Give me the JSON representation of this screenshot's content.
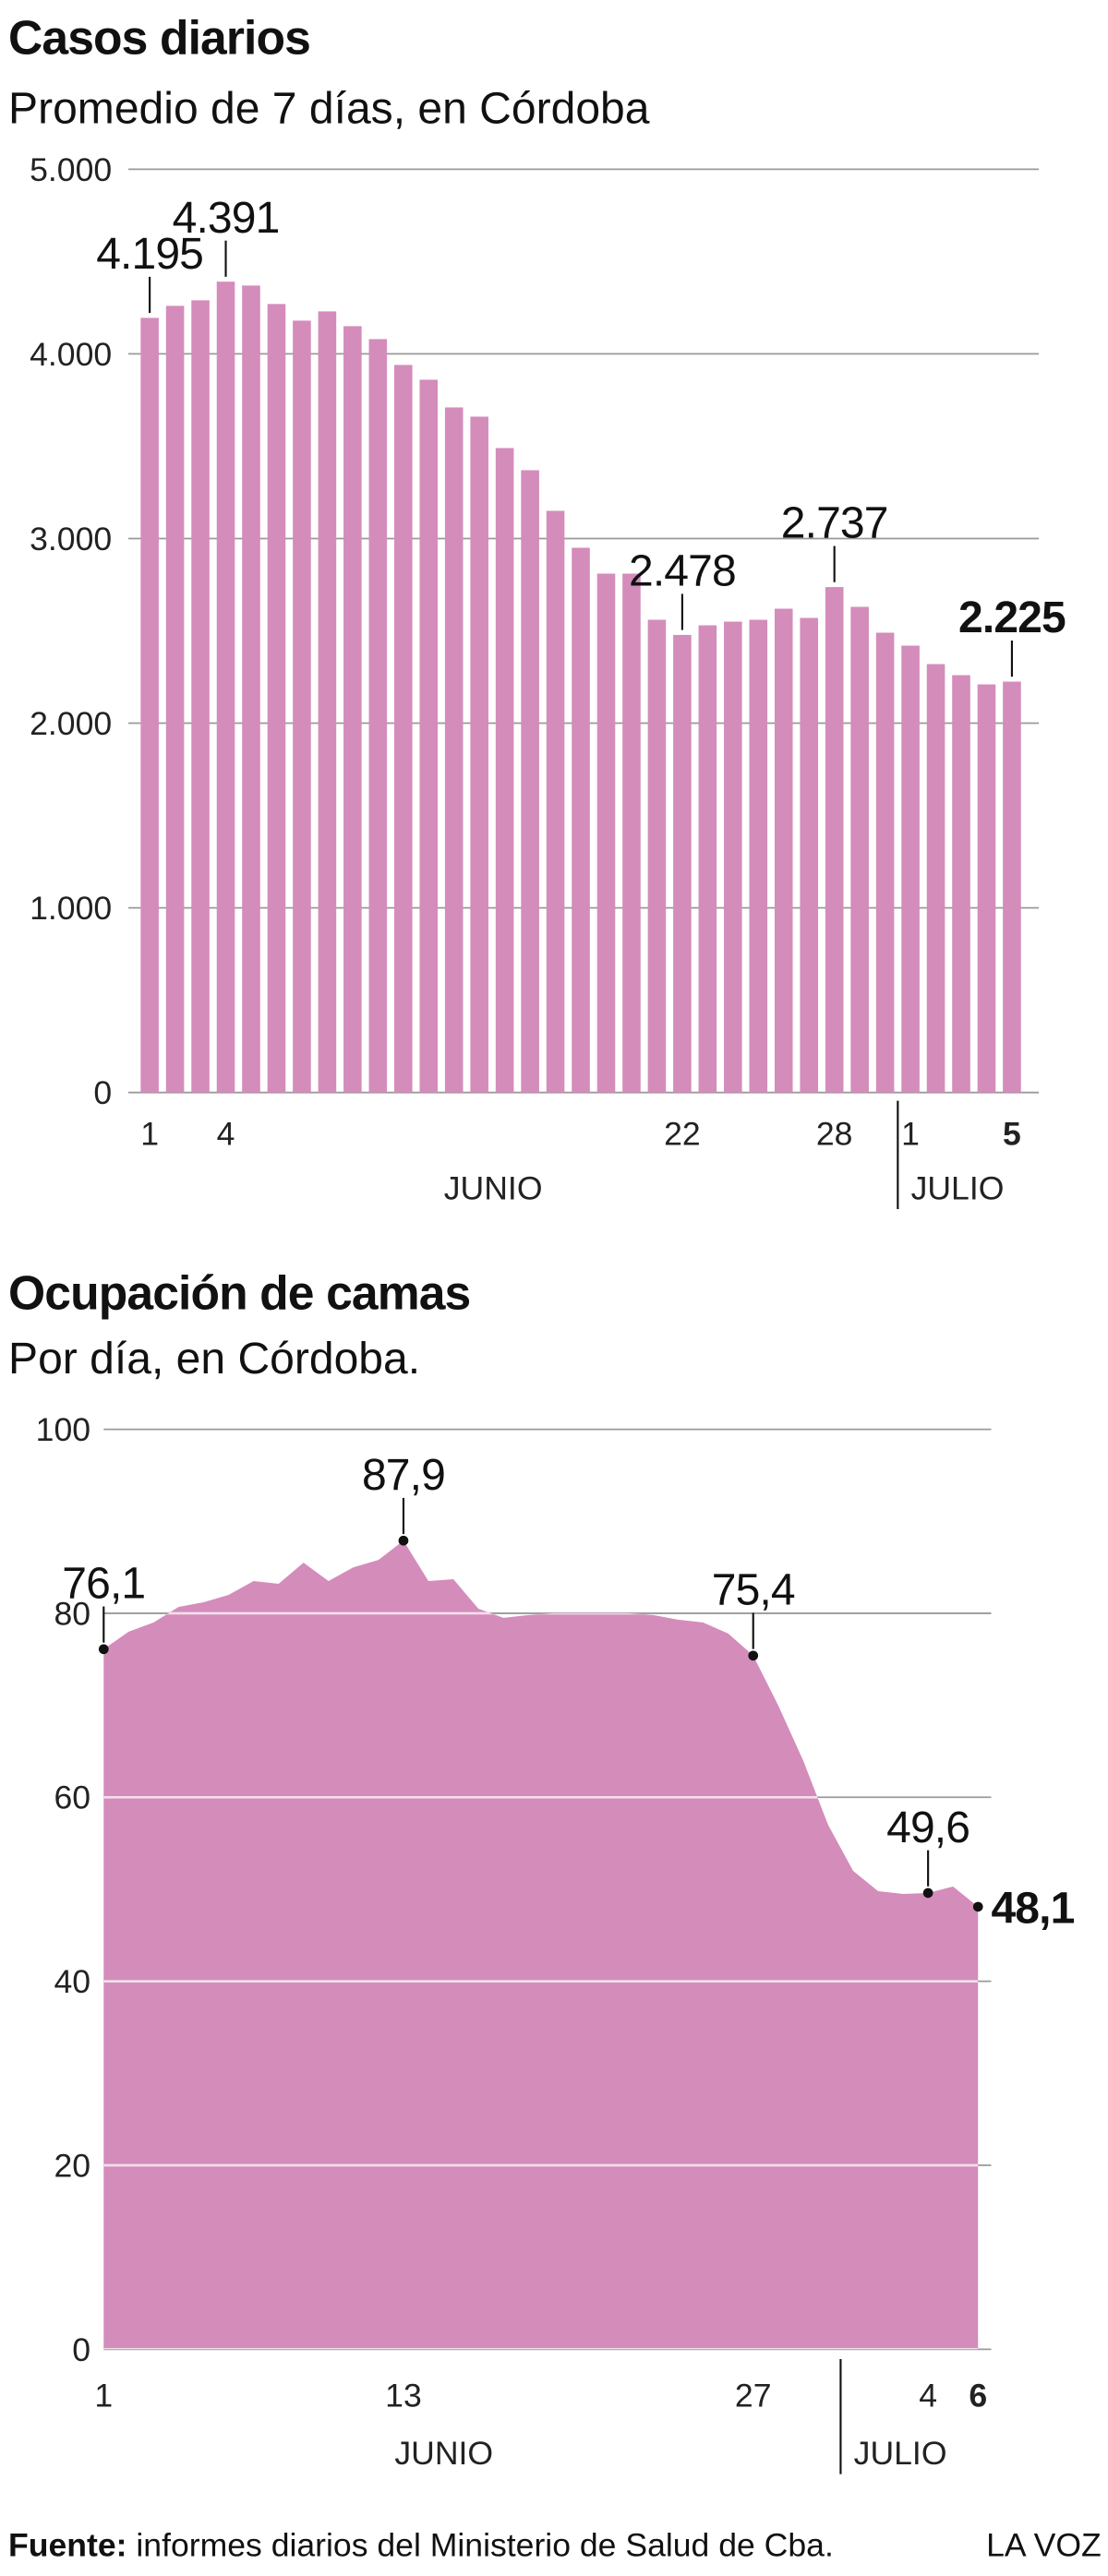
{
  "chart_data": [
    {
      "type": "bar",
      "title": "Casos diarios",
      "subtitle": "Promedio de 7 días, en Córdoba",
      "categories": [
        "1",
        null,
        null,
        "4",
        null,
        null,
        null,
        null,
        null,
        null,
        null,
        null,
        null,
        null,
        null,
        null,
        null,
        null,
        null,
        null,
        null,
        "22",
        null,
        null,
        null,
        null,
        null,
        "28",
        null,
        null,
        "1",
        null,
        null,
        null,
        "5"
      ],
      "groups": [
        "JUNIO",
        "JULIO"
      ],
      "values": [
        4195,
        4260,
        4290,
        4391,
        4370,
        4270,
        4180,
        4230,
        4150,
        4080,
        3940,
        3860,
        3710,
        3660,
        3490,
        3370,
        3150,
        2950,
        2810,
        2810,
        2560,
        2478,
        2530,
        2550,
        2560,
        2620,
        2570,
        2737,
        2630,
        2490,
        2420,
        2320,
        2260,
        2210,
        2225
      ],
      "value_labels": [
        "4.195",
        null,
        null,
        "4.391",
        null,
        null,
        null,
        null,
        null,
        null,
        null,
        null,
        null,
        null,
        null,
        null,
        null,
        null,
        null,
        null,
        null,
        "2.478",
        null,
        null,
        null,
        null,
        null,
        "2.737",
        null,
        null,
        null,
        null,
        null,
        null,
        "2.225"
      ],
      "color": "#d48cbb",
      "ylim": [
        0,
        5000
      ],
      "yticks": [
        0,
        {
          "value": 1000,
          "label": "1.000"
        },
        {
          "value": 2000,
          "label": "2.000"
        },
        {
          "value": 3000,
          "label": "3.000"
        },
        {
          "value": 4000,
          "label": "4.000"
        },
        {
          "value": 5000,
          "label": "5.000"
        }
      ],
      "grid": true
    },
    {
      "type": "area",
      "title": "Ocupación de camas",
      "subtitle": "Por día, en Córdoba.",
      "categories": [
        "1",
        null,
        null,
        null,
        null,
        null,
        null,
        null,
        null,
        null,
        null,
        null,
        "13",
        null,
        null,
        null,
        null,
        null,
        null,
        null,
        null,
        null,
        null,
        null,
        null,
        null,
        "27",
        null,
        null,
        null,
        null,
        null,
        null,
        "4",
        null,
        "6"
      ],
      "groups": [
        "JUNIO",
        "JULIO"
      ],
      "values": [
        76.1,
        78,
        79,
        80.7,
        81.2,
        82,
        83.5,
        83.2,
        85.5,
        83.5,
        85,
        85.8,
        87.9,
        83.5,
        83.7,
        80.5,
        79.5,
        79.8,
        80,
        80,
        80,
        80,
        79.8,
        79.3,
        79,
        77.8,
        75.4,
        70,
        64,
        57,
        52,
        49.8,
        49.5,
        49.6,
        50.3,
        48.1
      ],
      "value_labels": [
        "76,1",
        null,
        null,
        null,
        null,
        null,
        null,
        null,
        null,
        null,
        null,
        null,
        "87,9",
        null,
        null,
        null,
        null,
        null,
        null,
        null,
        null,
        null,
        null,
        null,
        null,
        null,
        "75,4",
        null,
        null,
        null,
        null,
        null,
        null,
        "49,6",
        null,
        "48,1"
      ],
      "color": "#d48cbb",
      "ylim": [
        0,
        100
      ],
      "yticks": [
        0,
        20,
        40,
        60,
        80,
        100
      ],
      "grid": true
    }
  ],
  "footer": {
    "source_label": "Fuente:",
    "source_text": "informes diarios del Ministerio de Salud de Cba.",
    "brand": "LA VOZ"
  }
}
